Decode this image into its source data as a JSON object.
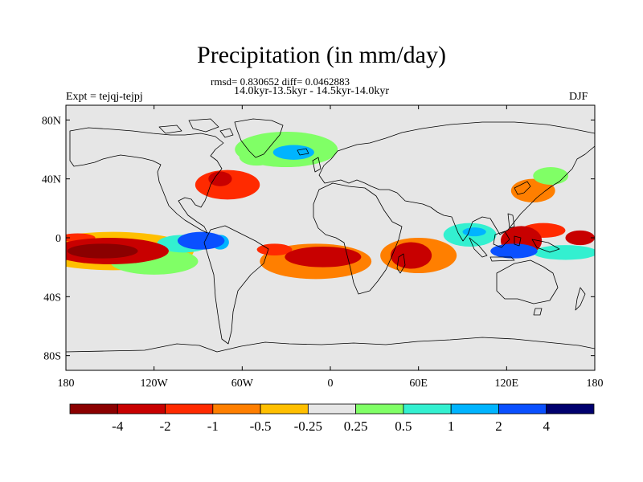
{
  "header": {
    "title": "Precipitation (in mm/day)",
    "stats": "rmsd= 0.830652 diff= 0.0462883",
    "period": "14.0kyr-13.5kyr - 14.5kyr-14.0kyr",
    "experiment": "Expt = tejqj-tejpj",
    "season": "DJF"
  },
  "chart_data": {
    "type": "heatmap",
    "title": "Precipitation (in mm/day)",
    "subtitle": "rmsd= 0.830652 diff= 0.0462883",
    "xlim": [
      -180,
      180
    ],
    "ylim": [
      -90,
      90
    ],
    "x_ticks": [
      {
        "value": -180,
        "label": "180"
      },
      {
        "value": -120,
        "label": "120W"
      },
      {
        "value": -60,
        "label": "60W"
      },
      {
        "value": 0,
        "label": "0"
      },
      {
        "value": 60,
        "label": "60E"
      },
      {
        "value": 120,
        "label": "120E"
      },
      {
        "value": 180,
        "label": "180"
      }
    ],
    "y_ticks": [
      {
        "value": 80,
        "label": "80N"
      },
      {
        "value": 40,
        "label": "40N"
      },
      {
        "value": 0,
        "label": "0"
      },
      {
        "value": -40,
        "label": "40S"
      },
      {
        "value": -80,
        "label": "80S"
      }
    ],
    "colorbar": {
      "colors": [
        "#8b0000",
        "#c80000",
        "#ff2a00",
        "#ff7f00",
        "#ffbf00",
        "#e6e6e6",
        "#80ff66",
        "#33f0d0",
        "#00b4ff",
        "#0a50ff",
        "#00006e"
      ],
      "labels": [
        "-4",
        "-2",
        "-1",
        "-0.5",
        "-0.25",
        "0.25",
        "0.5",
        "1",
        "2",
        "4"
      ]
    },
    "anomalies": [
      {
        "lon": -155,
        "lat": -9,
        "rx": 24,
        "ry": 5,
        "level": -4
      },
      {
        "lon": -150,
        "lat": -9,
        "rx": 40,
        "ry": 9,
        "level": -2
      },
      {
        "lon": -148,
        "lat": -9,
        "rx": 55,
        "ry": 13,
        "level": -0.25
      },
      {
        "lon": -172,
        "lat": 0,
        "rx": 12,
        "ry": 3,
        "level": -1
      },
      {
        "lon": -120,
        "lat": -16,
        "rx": 30,
        "ry": 9,
        "level": 0.5
      },
      {
        "lon": -100,
        "lat": -4,
        "rx": 18,
        "ry": 6,
        "level": 1
      },
      {
        "lon": -88,
        "lat": -2,
        "rx": 16,
        "ry": 6,
        "level": 4
      },
      {
        "lon": -75,
        "lat": -3,
        "rx": 6,
        "ry": 5,
        "level": 2
      },
      {
        "lon": -70,
        "lat": 36,
        "rx": 22,
        "ry": 10,
        "level": -1
      },
      {
        "lon": -75,
        "lat": 40,
        "rx": 8,
        "ry": 5,
        "level": -2
      },
      {
        "lon": -50,
        "lat": 55,
        "rx": 12,
        "ry": 6,
        "level": 0.5
      },
      {
        "lon": -25,
        "lat": 58,
        "rx": 14,
        "ry": 5,
        "level": 2
      },
      {
        "lon": -30,
        "lat": 60,
        "rx": 35,
        "ry": 12,
        "level": 0.5
      },
      {
        "lon": -38,
        "lat": -8,
        "rx": 12,
        "ry": 4,
        "level": -1
      },
      {
        "lon": -5,
        "lat": -13,
        "rx": 26,
        "ry": 7,
        "level": -2
      },
      {
        "lon": -10,
        "lat": -16,
        "rx": 38,
        "ry": 12,
        "level": -0.5
      },
      {
        "lon": 55,
        "lat": -12,
        "rx": 14,
        "ry": 9,
        "level": -2
      },
      {
        "lon": 60,
        "lat": -12,
        "rx": 26,
        "ry": 12,
        "level": -0.5
      },
      {
        "lon": 95,
        "lat": 2,
        "rx": 18,
        "ry": 8,
        "level": 1
      },
      {
        "lon": 98,
        "lat": 4,
        "rx": 8,
        "ry": 3,
        "level": 2
      },
      {
        "lon": 130,
        "lat": -2,
        "rx": 14,
        "ry": 10,
        "level": -2
      },
      {
        "lon": 145,
        "lat": 5,
        "rx": 15,
        "ry": 5,
        "level": -1
      },
      {
        "lon": 125,
        "lat": -9,
        "rx": 16,
        "ry": 5,
        "level": 4
      },
      {
        "lon": 160,
        "lat": -10,
        "rx": 22,
        "ry": 5,
        "level": 1
      },
      {
        "lon": 170,
        "lat": 0,
        "rx": 10,
        "ry": 5,
        "level": -2
      },
      {
        "lon": 138,
        "lat": 32,
        "rx": 15,
        "ry": 8,
        "level": -0.5
      },
      {
        "lon": 150,
        "lat": 42,
        "rx": 12,
        "ry": 6,
        "level": 0.5
      }
    ]
  }
}
